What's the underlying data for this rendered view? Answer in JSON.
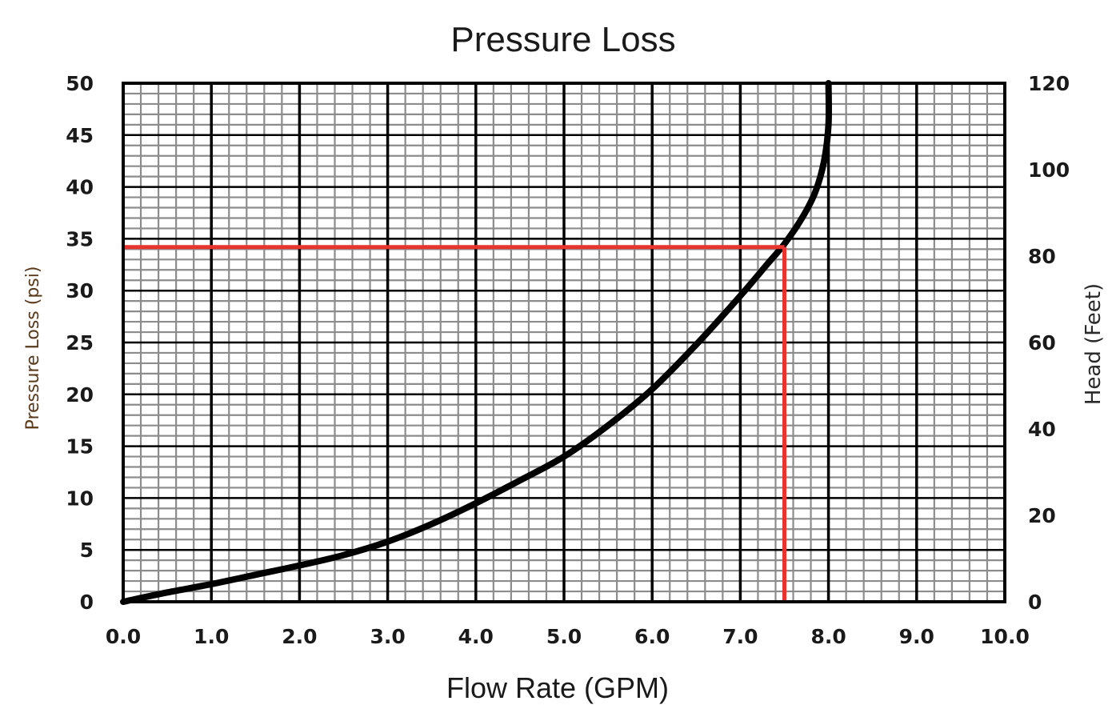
{
  "chart_data": {
    "type": "line",
    "title": "Pressure Loss",
    "xlabel": "Flow Rate (GPM)",
    "ylabel": "Pressure Loss (psi)",
    "y2label": "Head (Feet)",
    "xlim": [
      0,
      10
    ],
    "ylim": [
      0,
      50
    ],
    "y2lim": [
      0,
      120
    ],
    "grid": true,
    "grid_minor": {
      "x_step": 0.2,
      "y_step": 1
    },
    "x_ticks": [
      "0.0",
      "1.0",
      "2.0",
      "3.0",
      "4.0",
      "5.0",
      "6.0",
      "7.0",
      "8.0",
      "9.0",
      "10.0"
    ],
    "y_ticks": [
      "0",
      "5",
      "10",
      "15",
      "20",
      "25",
      "30",
      "35",
      "40",
      "45",
      "50"
    ],
    "y2_ticks": [
      "0",
      "20",
      "40",
      "60",
      "80",
      "100",
      "120"
    ],
    "series": [
      {
        "name": "Pressure Loss",
        "color": "#000000",
        "x": [
          0.0,
          0.5,
          1.0,
          1.5,
          2.0,
          2.5,
          3.0,
          3.5,
          4.0,
          4.5,
          5.0,
          5.5,
          6.0,
          6.5,
          7.0,
          7.3,
          7.5,
          7.7,
          7.85,
          7.95,
          8.0,
          8.0
        ],
        "y": [
          0.0,
          0.9,
          1.7,
          2.6,
          3.5,
          4.5,
          5.8,
          7.5,
          9.5,
          11.7,
          14.0,
          17.0,
          20.5,
          24.8,
          29.5,
          32.5,
          34.5,
          37.0,
          39.5,
          42.5,
          46.0,
          50.0
        ]
      }
    ],
    "annotations": [
      {
        "name": "operating-point-reference",
        "color": "#e8332e",
        "x": 7.5,
        "y": 34.2,
        "description": "horizontal line from y-axis to curve, vertical line from curve down to x-axis"
      }
    ]
  }
}
